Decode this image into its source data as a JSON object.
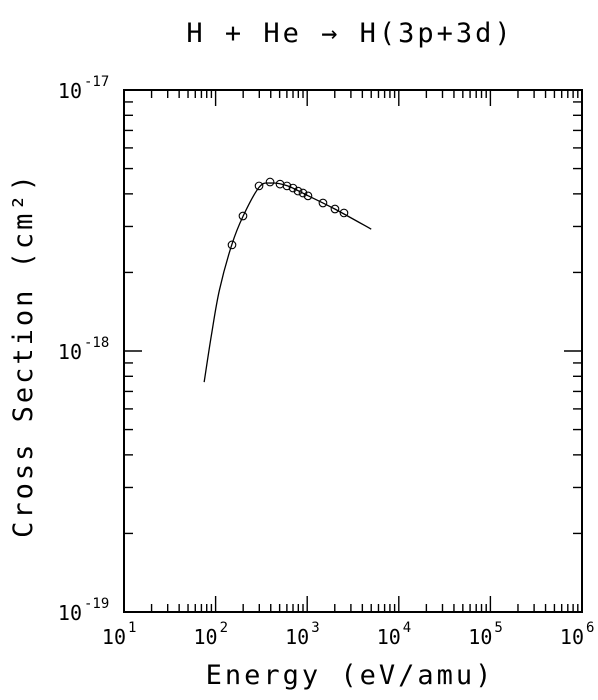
{
  "chart_data": {
    "type": "line",
    "title": "H + He → H(3p+3d)",
    "x_label": "Energy (eV/amu)",
    "y_label": "Cross Section (cm²)",
    "x_log": true,
    "y_log": true,
    "color": "#000000",
    "xlim": [
      10,
      1000000
    ],
    "ylim": [
      1e-19,
      1e-17
    ],
    "xticks": [
      {
        "value": 10,
        "label": "10",
        "exponent": "1"
      },
      {
        "value": 100,
        "label": "10",
        "exponent": "2"
      },
      {
        "value": 1000,
        "label": "10",
        "exponent": "3"
      },
      {
        "value": 10000,
        "label": "10",
        "exponent": "4"
      },
      {
        "value": 100000,
        "label": "10",
        "exponent": "5"
      },
      {
        "value": 1000000,
        "label": "10",
        "exponent": "6"
      }
    ],
    "yticks": [
      {
        "value": 1e-19,
        "label": "10",
        "exponent": "-19"
      },
      {
        "value": 1e-18,
        "label": "10",
        "exponent": "-18"
      },
      {
        "value": 1e-17,
        "label": "10",
        "exponent": "-17"
      }
    ],
    "series": [
      {
        "style": "line",
        "x": [
          75,
          90,
          110,
          150,
          200,
          300,
          400,
          600,
          1000,
          2000,
          5000
        ],
        "values": [
          7.6e-19,
          1.15e-18,
          1.71e-18,
          2.55e-18,
          3.29e-18,
          4.25e-18,
          4.4e-18,
          4.3e-18,
          3.95e-18,
          3.5e-18,
          2.93e-18
        ]
      },
      {
        "style": "marker",
        "x": [
          151,
          199,
          298,
          393,
          505,
          601,
          700,
          794,
          900,
          1020,
          1486,
          2009,
          2520
        ],
        "values": [
          2.55e-18,
          3.29e-18,
          4.29e-18,
          4.44e-18,
          4.36e-18,
          4.29e-18,
          4.21e-18,
          4.1e-18,
          4.03e-18,
          3.93e-18,
          3.69e-18,
          3.5e-18,
          3.38e-18
        ]
      }
    ]
  }
}
